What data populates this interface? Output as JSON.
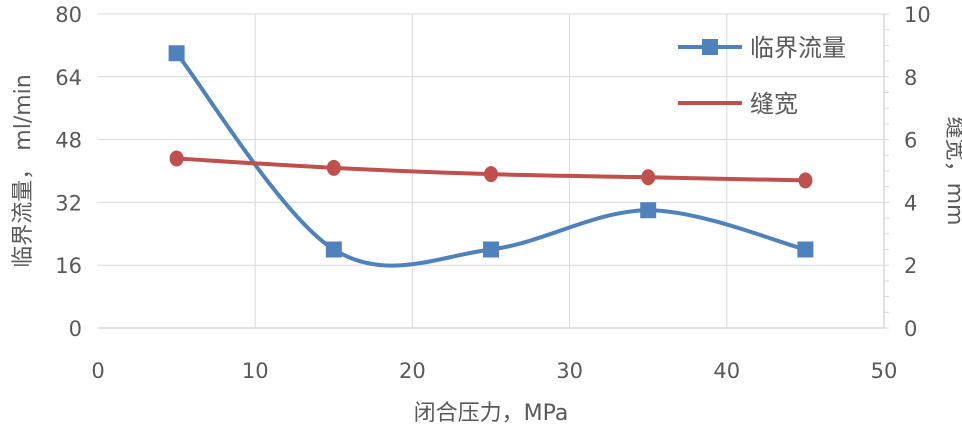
{
  "chart_data": {
    "type": "line",
    "title": "",
    "xlabel": "闭合压力，MPa",
    "ylabel": "临界流量， ml/min",
    "y2label": "缝宽，mm",
    "xlim": [
      0,
      50
    ],
    "ylim": [
      0,
      80
    ],
    "y2lim": [
      0,
      10
    ],
    "xticks": [
      0,
      10,
      20,
      30,
      40,
      50
    ],
    "yticks": [
      0,
      16,
      32,
      48,
      64,
      80
    ],
    "y2ticks": [
      0,
      2,
      4,
      6,
      8,
      10
    ],
    "grid": true,
    "legend_position": "top-right",
    "x": [
      5,
      15,
      25,
      35,
      45
    ],
    "series": [
      {
        "name": "临界流量",
        "axis": "left",
        "values": [
          70,
          20,
          20,
          30,
          20
        ],
        "color": "#4f81bd",
        "marker": "square",
        "smooth": true
      },
      {
        "name": "缝宽",
        "axis": "right",
        "values": [
          5.4,
          5.1,
          4.9,
          4.8,
          4.7
        ],
        "color": "#c0504d",
        "marker": "circle",
        "smooth": true
      }
    ]
  }
}
